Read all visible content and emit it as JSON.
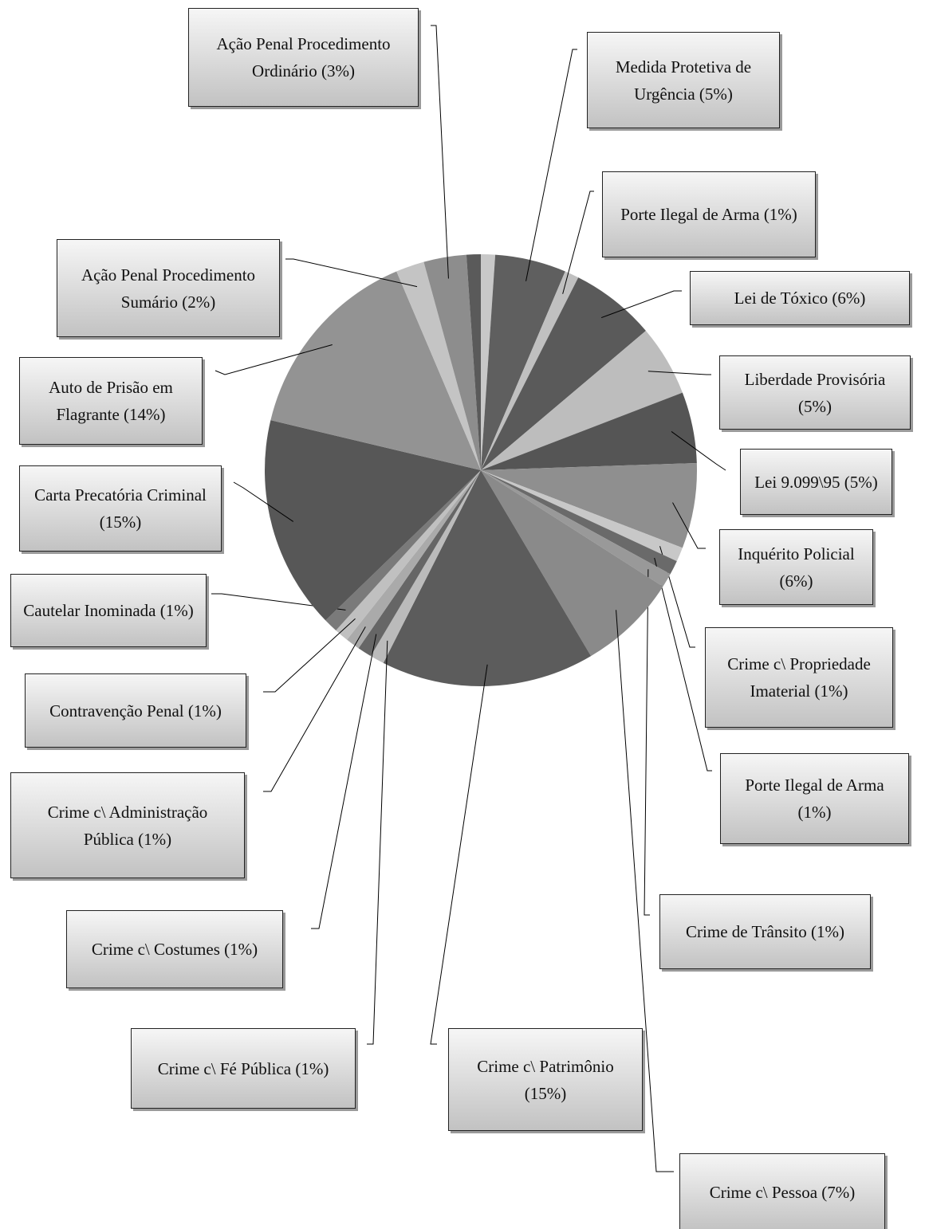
{
  "chart_data": {
    "type": "pie",
    "categories": [
      null,
      "Medida Protetiva de Urgência",
      "Porte Ilegal de Arma",
      "Lei de Tóxico",
      "Liberdade Provisória",
      "Lei 9.099\\95",
      "Inquérito Policial",
      "Crime c\\ Propriedade Imaterial",
      "Porte Ilegal de Arma",
      "Crime de Trânsito",
      "Crime c\\ Pessoa",
      "Crime c\\ Patrimônio",
      "Crime c\\ Fé Pública",
      "Crime c\\ Costumes",
      "Crime c\\ Administração Pública",
      "Contravenção Penal",
      "Cautelar Inominada",
      "Carta Precatória Criminal",
      "Auto de Prisão em Flagrante",
      "Ação Penal Procedimento Sumário",
      "Ação Penal Procedimento Ordinário",
      null
    ],
    "values": [
      1,
      5,
      1,
      6,
      5,
      5,
      6,
      1,
      1,
      1,
      7,
      15,
      1,
      1,
      1,
      1,
      1,
      15,
      14,
      2,
      3,
      1
    ],
    "value_labels": [
      null,
      "(5%)",
      "(1%)",
      "(6%)",
      "(5%)",
      "(5%)",
      "(6%)",
      "(1%)",
      "(1%)",
      "(1%)",
      "(7%)",
      "(15%)",
      "(1%)",
      "(1%)",
      "(1%)",
      "(1%)",
      "(1%)",
      "(15%)",
      "(14%)",
      "(2%)",
      "(3%)",
      null
    ],
    "colors": [
      "#c8c8c8",
      "#5f5f5f",
      "#c0c0c0",
      "#5a5a5a",
      "#bdbdbd",
      "#555555",
      "#8f8f8f",
      "#c8c8c8",
      "#6a6a6a",
      "#999999",
      "#8a8a8a",
      "#5c5c5c",
      "#bbbbbb",
      "#666666",
      "#aaaaaa",
      "#c0c0c0",
      "#7a7a7a",
      "#575757",
      "#939393",
      "#c4c4c4",
      "#8d8d8d",
      "#5a5a5a"
    ]
  }
}
